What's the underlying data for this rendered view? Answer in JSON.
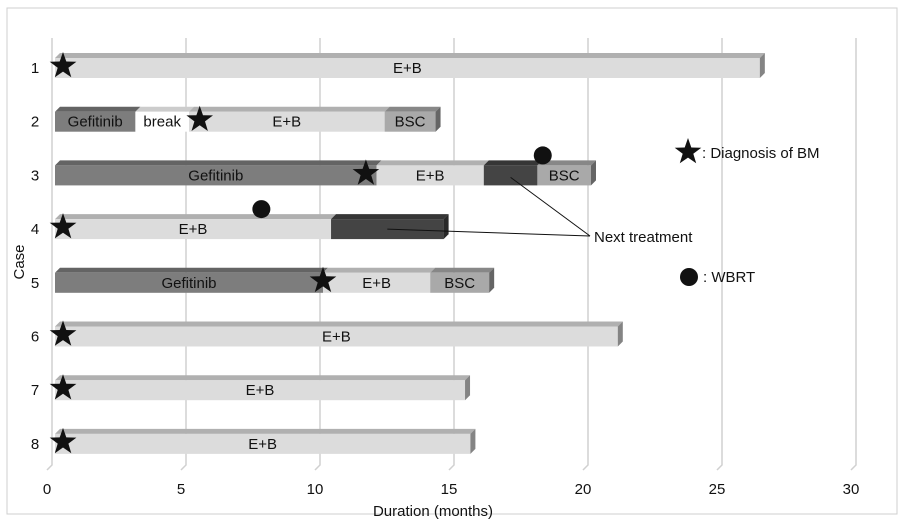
{
  "chart_data": {
    "type": "bar",
    "orientation": "horizontal",
    "stacked": true,
    "xlabel": "Duration (months)",
    "ylabel": "Case",
    "xlim": [
      0,
      30
    ],
    "xticks": [
      0,
      5,
      10,
      15,
      20,
      25,
      30
    ],
    "grid": true,
    "categories": [
      "1",
      "2",
      "3",
      "4",
      "5",
      "6",
      "7",
      "8"
    ],
    "segment_types": {
      "gefitinib": {
        "color": "#7d7d7d",
        "text_color": "#ffffff"
      },
      "break": {
        "color": "#ffffff",
        "text_color": "#111111"
      },
      "eb": {
        "color": "#dcdcdc",
        "text_color": "#111111"
      },
      "bsc": {
        "color": "#a9a9a9",
        "text_color": "#111111"
      },
      "next": {
        "color": "#444444",
        "text_color": "#111111"
      }
    },
    "cases": [
      {
        "case": "1",
        "segments": [
          {
            "type": "eb",
            "start": 0,
            "end": 26.3,
            "label": "E+B"
          }
        ],
        "bm": 0.3
      },
      {
        "case": "2",
        "segments": [
          {
            "type": "gefitinib",
            "start": 0,
            "end": 3.0,
            "label": "Gefitinib"
          },
          {
            "type": "break",
            "start": 3.0,
            "end": 5.0,
            "label": "break"
          },
          {
            "type": "eb",
            "start": 5.0,
            "end": 12.3,
            "label": "E+B"
          },
          {
            "type": "bsc",
            "start": 12.3,
            "end": 14.2,
            "label": "BSC"
          }
        ],
        "bm": 5.4
      },
      {
        "case": "3",
        "segments": [
          {
            "type": "gefitinib",
            "start": 0,
            "end": 12.0,
            "label": "Gefitinib"
          },
          {
            "type": "eb",
            "start": 12.0,
            "end": 16.0,
            "label": "E+B"
          },
          {
            "type": "next",
            "start": 16.0,
            "end": 18.0,
            "label": ""
          },
          {
            "type": "bsc",
            "start": 18.0,
            "end": 20.0,
            "label": "BSC"
          }
        ],
        "bm": 11.6,
        "wbrt": 18.2
      },
      {
        "case": "4",
        "segments": [
          {
            "type": "eb",
            "start": 0,
            "end": 10.3,
            "label": "E+B"
          },
          {
            "type": "next",
            "start": 10.3,
            "end": 14.5,
            "label": ""
          }
        ],
        "bm": 0.3,
        "wbrt": 7.7
      },
      {
        "case": "5",
        "segments": [
          {
            "type": "gefitinib",
            "start": 0,
            "end": 10.0,
            "label": "Gefitinib"
          },
          {
            "type": "eb",
            "start": 10.0,
            "end": 14.0,
            "label": "E+B"
          },
          {
            "type": "bsc",
            "start": 14.0,
            "end": 16.2,
            "label": "BSC"
          }
        ],
        "bm": 10.0
      },
      {
        "case": "6",
        "segments": [
          {
            "type": "eb",
            "start": 0,
            "end": 21.0,
            "label": "E+B"
          }
        ],
        "bm": 0.3
      },
      {
        "case": "7",
        "segments": [
          {
            "type": "eb",
            "start": 0,
            "end": 15.3,
            "label": "E+B"
          }
        ],
        "bm": 0.3
      },
      {
        "case": "8",
        "segments": [
          {
            "type": "eb",
            "start": 0,
            "end": 15.5,
            "label": "E+B"
          }
        ],
        "bm": 0.3
      }
    ],
    "legend": [
      {
        "symbol": "star",
        "label": ": Diagnosis of BM"
      },
      {
        "symbol": "circle",
        "label": ": WBRT"
      }
    ],
    "annotations": [
      {
        "text": "Next treatment",
        "points_to": [
          {
            "case": "3",
            "x": 17.0
          },
          {
            "case": "4",
            "x": 12.4
          }
        ]
      }
    ]
  }
}
